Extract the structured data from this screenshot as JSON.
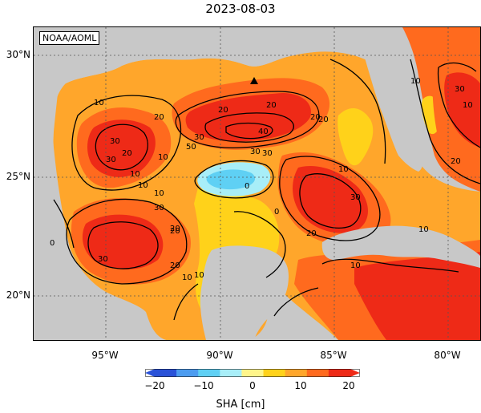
{
  "title": "2023-08-03",
  "credit": "NOAA/AOML",
  "latitude_labels": [
    "30°N",
    "25°N",
    "20°N"
  ],
  "longitude_labels": [
    "95°W",
    "90°W",
    "85°W",
    "80°W"
  ],
  "contour_labels": [
    "10",
    "20",
    "10",
    "20",
    "30",
    "30",
    "10",
    "20",
    "30",
    "20",
    "50",
    "40",
    "30",
    "0",
    "20",
    "10",
    "30",
    "30",
    "10",
    "0",
    "10",
    "20",
    "30",
    "20",
    "10",
    "20",
    "10",
    "20",
    "10",
    "30",
    "10",
    "10",
    "20",
    "0",
    "10",
    "30",
    "20"
  ],
  "colorbar": {
    "label": "SHA [cm]",
    "ticks": [
      "−20",
      "−10",
      "0",
      "10",
      "20"
    ],
    "colors": [
      "#2a52d8",
      "#4c9cf0",
      "#5fd0f4",
      "#a8eef8",
      "#fff58a",
      "#ffd21a",
      "#ffa62b",
      "#ff6a1e",
      "#ee2a17"
    ]
  },
  "map_colors": {
    "land": "#c8c8c8",
    "positive_low": "#ffd21a",
    "positive_mid": "#ffa62b",
    "positive_high": "#ff6a1e",
    "positive_max": "#ee2a17",
    "negative": "#5fd0f4"
  },
  "marker": "triangle"
}
